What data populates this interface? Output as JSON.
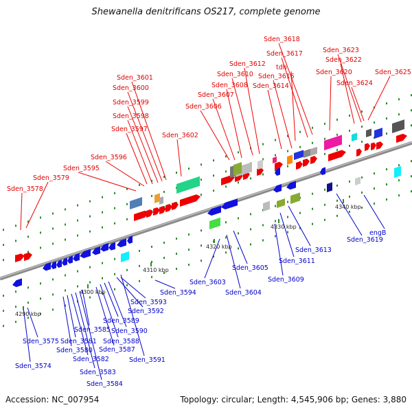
{
  "title": "Shewanella denitrificans OS217, complete genome",
  "footer": {
    "accession": "Accession: NC_007954",
    "stats": "Topology: circular; Length: 4,545,906 bp; Genes: 3,880"
  },
  "colors": {
    "forward_label": "#e00000",
    "reverse_label": "#0000cc",
    "axis": "#8a8a8a"
  },
  "scale_labels": [
    "4290 kbp",
    "4300 kbp",
    "4310 kbp",
    "4320 kbp",
    "4330 kbp",
    "4340 kbp"
  ],
  "top_labels": [
    "Sden_3578",
    "Sden_3579",
    "Sden_3595",
    "Sden_3596",
    "Sden_3597",
    "Sden_3598",
    "Sden_3599",
    "Sden_3600",
    "Sden_3601",
    "Sden_3602",
    "Sden_3606",
    "Sden_3607",
    "Sden_3608",
    "Sden_3610",
    "Sden_3612",
    "Sden_3614",
    "Sden_3615",
    "tdh",
    "Sden_3617",
    "Sden_3618",
    "Sden_3620",
    "Sden_3622",
    "Sden_3623",
    "Sden_3624",
    "Sden_3625"
  ],
  "bottom_labels": [
    "Sden_3574",
    "Sden_3575",
    "Sden_3580",
    "Sden_3581",
    "Sden_3582",
    "Sden_3583",
    "Sden_3584",
    "Sden_3585",
    "Sden_3587",
    "Sden_3588",
    "Sden_3589",
    "Sden_3590",
    "Sden_3591",
    "Sden_3592",
    "Sden_3593",
    "Sden_3594",
    "Sden_3603",
    "Sden_3604",
    "Sden_3605",
    "Sden_3609",
    "Sden_3611",
    "Sden_3613",
    "Sden_3619",
    "engB"
  ]
}
